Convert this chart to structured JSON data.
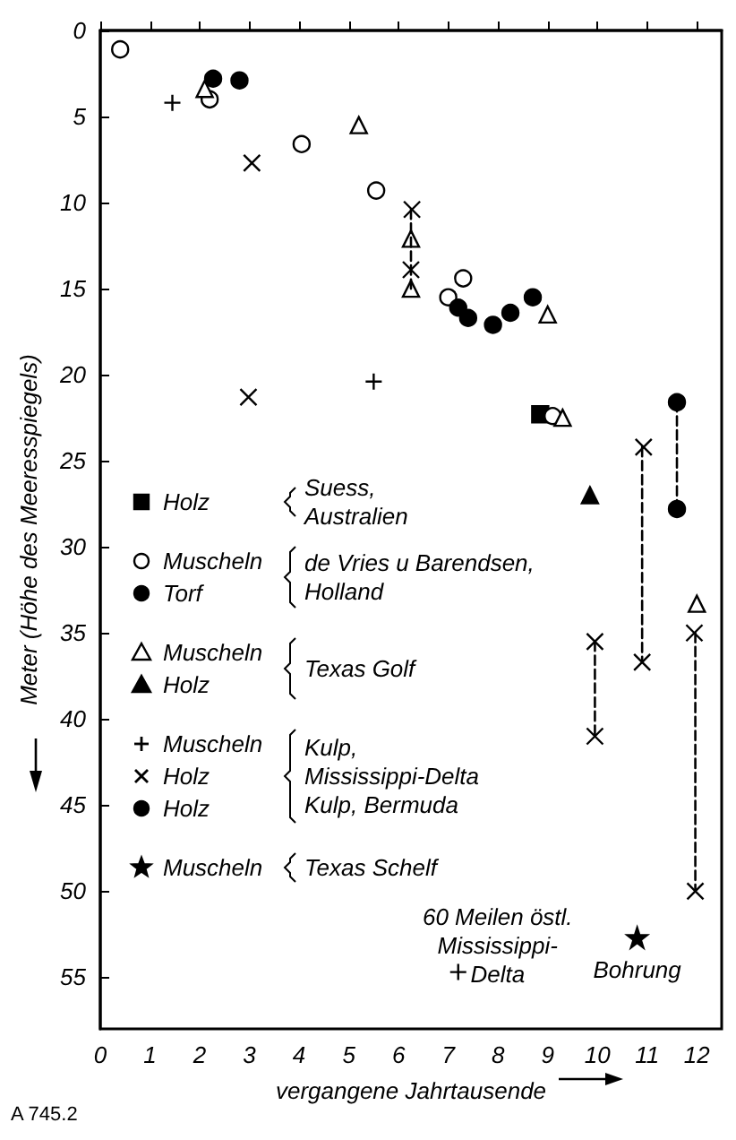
{
  "chart_data": {
    "type": "scatter",
    "xlabel": "vergangene Jahrtausende",
    "ylabel": "Meter (Höhe des Meeresspiegels)",
    "xlim": [
      0,
      12.5
    ],
    "ylim": [
      58,
      0
    ],
    "xticks": [
      0,
      1,
      2,
      3,
      4,
      5,
      6,
      7,
      8,
      9,
      10,
      11,
      12
    ],
    "yticks": [
      0,
      5,
      10,
      15,
      20,
      25,
      30,
      35,
      40,
      45,
      50,
      55
    ],
    "grid": false,
    "legend": "left",
    "series": [
      {
        "name": "Holz",
        "marker": "square",
        "color": "#000000",
        "x": [
          8.85
        ],
        "values": [
          22.3
        ]
      },
      {
        "name": "Muscheln",
        "marker": "circle",
        "color": "#ffffff",
        "x": [
          0.4,
          2.2,
          4.05,
          5.55,
          7.3,
          7.0,
          9.1
        ],
        "values": [
          1.1,
          4.0,
          6.6,
          9.3,
          14.4,
          15.5,
          22.4
        ]
      },
      {
        "name": "Torf",
        "marker": "circle",
        "color": "#000000",
        "x": [
          2.27,
          2.8,
          7.2,
          7.4,
          7.9,
          8.25,
          8.7
        ],
        "values": [
          2.8,
          2.9,
          16.1,
          16.7,
          17.1,
          16.4,
          15.5
        ]
      },
      {
        "name": "Muscheln",
        "marker": "triangle",
        "color": "#ffffff",
        "x": [
          2.1,
          5.2,
          6.25,
          6.25,
          9.0,
          9.3,
          12.0
        ],
        "values": [
          3.4,
          5.5,
          12.1,
          15.0,
          16.5,
          22.5,
          33.3
        ]
      },
      {
        "name": "Holz",
        "marker": "triangle",
        "color": "#000000",
        "x": [
          9.85
        ],
        "values": [
          27.0
        ]
      },
      {
        "name": "Muscheln",
        "marker": "plus",
        "color": "#000000",
        "x": [
          1.45,
          5.5,
          7.2
        ],
        "values": [
          4.2,
          20.4,
          54.7
        ]
      },
      {
        "name": "Holz",
        "marker": "cross",
        "color": "#000000",
        "x": [
          3.05,
          6.27,
          6.25,
          2.98,
          10.93,
          10.9,
          9.95,
          9.95,
          11.95,
          11.97
        ],
        "values": [
          7.7,
          10.4,
          13.9,
          21.3,
          24.2,
          36.7,
          35.5,
          41.0,
          35.0,
          50.0
        ]
      },
      {
        "name": "Holz",
        "marker": "circle",
        "color": "#000000",
        "x": [
          11.6,
          11.6
        ],
        "values": [
          21.6,
          27.8
        ]
      },
      {
        "name": "Muscheln",
        "marker": "star",
        "color": "#000000",
        "x": [
          10.8
        ],
        "values": [
          52.7
        ]
      },
      {
        "type": "line",
        "line_style": "dashed",
        "marker": "none",
        "color": "#000000",
        "x": [
          6.25,
          6.25
        ],
        "values": [
          10.4,
          15.0
        ]
      },
      {
        "type": "line",
        "line_style": "dashed",
        "marker": "none",
        "color": "#000000",
        "x": [
          9.95,
          9.95
        ],
        "values": [
          35.5,
          41.0
        ]
      },
      {
        "type": "line",
        "line_style": "dashed",
        "marker": "none",
        "color": "#000000",
        "x": [
          10.9,
          10.9
        ],
        "values": [
          24.2,
          36.7
        ]
      },
      {
        "type": "line",
        "line_style": "dashed",
        "marker": "none",
        "color": "#000000",
        "x": [
          11.6,
          11.6
        ],
        "values": [
          21.6,
          27.8
        ]
      },
      {
        "type": "line",
        "line_style": "dashed",
        "marker": "none",
        "color": "#000000",
        "x": [
          11.97,
          11.97
        ],
        "values": [
          35.0,
          50.0
        ]
      }
    ],
    "annotations": [
      "Suess,\nAustralien",
      "de Vries u Barendsen,\nHolland",
      "Texas Golf",
      "Kulp,\nMississippi-Delta\nKulp, Bermuda",
      "Texas Schelf",
      {
        "text": "60 Meilen östl.\nMississippi-\nDelta",
        "x": 7.2,
        "y": 54.7
      },
      {
        "text": "Bohrung",
        "x": 10.8,
        "y": 52.7
      },
      "A 745.2"
    ]
  }
}
